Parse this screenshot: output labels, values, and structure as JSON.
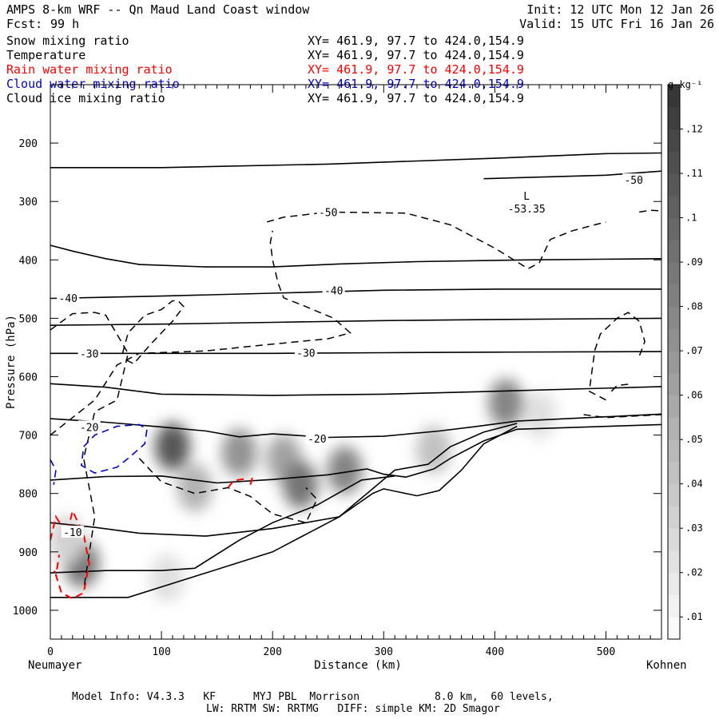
{
  "header": {
    "title": "AMPS 8-km WRF -- Qn Maud Land Coast window",
    "forecast_label": "Fcst:",
    "forecast_hours": "99 h",
    "init": "Init: 12 UTC Mon 12 Jan 26",
    "valid": "Valid: 15 UTC Fri 16 Jan 26"
  },
  "fields": [
    {
      "label": "Snow mixing ratio",
      "xy": "XY= 461.9, 97.7 to 424.0,154.9",
      "color": "#000000"
    },
    {
      "label": "Temperature",
      "xy": "XY= 461.9, 97.7 to 424.0,154.9",
      "color": "#000000"
    },
    {
      "label": "Rain water mixing ratio",
      "xy": "XY= 461.9, 97.7 to 424.0,154.9",
      "color": "#ff0000"
    },
    {
      "label": "Cloud water mixing ratio",
      "xy": "XY= 461.9, 97.7 to 424.0,154.9",
      "color": "#0000cc"
    },
    {
      "label": "Cloud ice mixing ratio",
      "xy": "XY= 461.9, 97.7 to 424.0,154.9",
      "color": "#000000"
    }
  ],
  "footer": {
    "line1": "Model Info: V4.3.3   KF      MYJ PBL  Morrison            8.0 km,  60 levels,",
    "line2": "LW: RRTM SW: RRTMG   DIFF: simple KM: 2D Smagor"
  },
  "chart_data": {
    "type": "cross-section",
    "title": "AMPS 8-km WRF -- Qn Maud Land Coast window",
    "xlabel": "Distance (km)",
    "ylabel": "Pressure (hPa)",
    "xlim": [
      0,
      550
    ],
    "ylim": [
      1050,
      100
    ],
    "x_ticks": [
      0,
      100,
      200,
      300,
      400,
      500
    ],
    "y_ticks": [
      200,
      300,
      400,
      500,
      600,
      700,
      800,
      900,
      1000
    ],
    "x_start_label": "Neumayer",
    "x_end_label": "Kohnen",
    "colorbar": {
      "unit": "g kg⁻¹",
      "ticks": [
        ".01",
        ".02",
        ".03",
        ".04",
        ".05",
        ".06",
        ".07",
        ".08",
        ".09",
        ".1",
        ".11",
        ".12"
      ],
      "min": 0.005,
      "max": 0.13
    },
    "annotation": {
      "label": "L",
      "value": "-53.35",
      "x": 420,
      "p": 300
    },
    "temperature_labels": [
      {
        "text": "-50",
        "x": 525,
        "p": 263
      },
      {
        "text": "-50",
        "x": 250,
        "p": 318
      },
      {
        "text": "-40",
        "x": 16,
        "p": 465
      },
      {
        "text": "-40",
        "x": 255,
        "p": 452
      },
      {
        "text": "-30",
        "x": 35,
        "p": 560
      },
      {
        "text": "-30",
        "x": 230,
        "p": 559
      },
      {
        "text": "-20",
        "x": 35,
        "p": 686
      },
      {
        "text": "-20",
        "x": 240,
        "p": 706
      },
      {
        "text": "-10",
        "x": 20,
        "p": 866
      }
    ],
    "temperature_isotherms": [
      [
        [
          0,
          242
        ],
        [
          100,
          242
        ],
        [
          250,
          236
        ],
        [
          400,
          226
        ],
        [
          500,
          218
        ],
        [
          550,
          217
        ]
      ],
      [
        [
          390,
          261
        ],
        [
          500,
          255
        ],
        [
          550,
          248
        ]
      ],
      [
        [
          0,
          375
        ],
        [
          20,
          385
        ],
        [
          50,
          398
        ],
        [
          80,
          408
        ],
        [
          140,
          412
        ],
        [
          200,
          412
        ],
        [
          260,
          407
        ],
        [
          330,
          403
        ],
        [
          430,
          400
        ],
        [
          550,
          398
        ]
      ],
      [
        [
          0,
          466
        ],
        [
          100,
          462
        ],
        [
          200,
          457
        ],
        [
          300,
          452
        ],
        [
          400,
          450
        ],
        [
          550,
          450
        ]
      ],
      [
        [
          0,
          512
        ],
        [
          100,
          510
        ],
        [
          200,
          507
        ],
        [
          300,
          504
        ],
        [
          400,
          502
        ],
        [
          550,
          500
        ]
      ],
      [
        [
          0,
          560
        ],
        [
          100,
          560
        ],
        [
          200,
          560
        ],
        [
          300,
          559
        ],
        [
          400,
          558
        ],
        [
          550,
          557
        ]
      ],
      [
        [
          0,
          612
        ],
        [
          50,
          618
        ],
        [
          100,
          630
        ],
        [
          200,
          632
        ],
        [
          300,
          630
        ],
        [
          400,
          625
        ],
        [
          550,
          617
        ]
      ],
      [
        [
          0,
          672
        ],
        [
          50,
          678
        ],
        [
          100,
          686
        ],
        [
          140,
          693
        ],
        [
          170,
          703
        ],
        [
          200,
          698
        ],
        [
          250,
          704
        ],
        [
          300,
          702
        ],
        [
          350,
          693
        ],
        [
          380,
          686
        ],
        [
          420,
          676
        ],
        [
          550,
          664
        ]
      ],
      [
        [
          0,
          777
        ],
        [
          50,
          771
        ],
        [
          100,
          770
        ],
        [
          150,
          782
        ],
        [
          200,
          776
        ],
        [
          250,
          768
        ],
        [
          285,
          758
        ],
        [
          300,
          767
        ],
        [
          320,
          772
        ],
        [
          345,
          758
        ],
        [
          360,
          740
        ],
        [
          390,
          710
        ],
        [
          420,
          690
        ],
        [
          550,
          682
        ]
      ],
      [
        [
          0,
          850
        ],
        [
          40,
          858
        ],
        [
          80,
          868
        ],
        [
          140,
          873
        ],
        [
          200,
          860
        ],
        [
          260,
          840
        ],
        [
          290,
          800
        ],
        [
          300,
          792
        ],
        [
          330,
          804
        ],
        [
          350,
          795
        ],
        [
          370,
          760
        ],
        [
          390,
          715
        ],
        [
          420,
          685
        ]
      ],
      [
        [
          0,
          936
        ],
        [
          50,
          932
        ],
        [
          100,
          932
        ],
        [
          130,
          928
        ],
        [
          170,
          880
        ],
        [
          200,
          850
        ],
        [
          240,
          820
        ],
        [
          280,
          777
        ],
        [
          310,
          770
        ]
      ],
      [
        [
          0,
          978
        ],
        [
          50,
          978
        ],
        [
          70,
          978
        ],
        [
          130,
          942
        ],
        [
          200,
          900
        ],
        [
          260,
          840
        ],
        [
          310,
          760
        ],
        [
          340,
          750
        ],
        [
          360,
          720
        ],
        [
          390,
          695
        ],
        [
          420,
          680
        ]
      ]
    ],
    "snow_mixing_ratio_contours": [
      [
        [
          195,
          335
        ],
        [
          210,
          327
        ],
        [
          250,
          318
        ],
        [
          320,
          320
        ],
        [
          360,
          340
        ],
        [
          400,
          380
        ],
        [
          430,
          415
        ],
        [
          440,
          405
        ],
        [
          450,
          365
        ],
        [
          470,
          350
        ],
        [
          490,
          340
        ],
        [
          500,
          335
        ]
      ],
      [
        [
          0,
          520
        ],
        [
          20,
          492
        ],
        [
          40,
          490
        ],
        [
          50,
          495
        ],
        [
          70,
          560
        ],
        [
          60,
          640
        ],
        [
          40,
          660
        ],
        [
          30,
          740
        ],
        [
          40,
          840
        ],
        [
          30,
          965
        ]
      ],
      [
        [
          0,
          700
        ],
        [
          20,
          670
        ],
        [
          40,
          640
        ],
        [
          60,
          580
        ],
        [
          80,
          560
        ],
        [
          140,
          556
        ],
        [
          180,
          548
        ],
        [
          250,
          535
        ],
        [
          270,
          525
        ],
        [
          255,
          500
        ],
        [
          230,
          480
        ],
        [
          210,
          465
        ],
        [
          205,
          440
        ],
        [
          200,
          400
        ],
        [
          198,
          370
        ],
        [
          200,
          350
        ]
      ],
      [
        [
          65,
          560
        ],
        [
          70,
          525
        ],
        [
          85,
          495
        ],
        [
          100,
          485
        ],
        [
          110,
          470
        ],
        [
          115,
          470
        ],
        [
          120,
          480
        ],
        [
          110,
          505
        ],
        [
          90,
          545
        ],
        [
          75,
          578
        ],
        [
          67,
          570
        ]
      ],
      [
        [
          80,
          740
        ],
        [
          100,
          780
        ],
        [
          130,
          800
        ],
        [
          160,
          790
        ],
        [
          180,
          805
        ],
        [
          200,
          835
        ],
        [
          230,
          850
        ],
        [
          240,
          810
        ],
        [
          230,
          790
        ]
      ],
      [
        [
          500,
          640
        ],
        [
          485,
          625
        ],
        [
          490,
          555
        ],
        [
          495,
          527
        ],
        [
          510,
          500
        ],
        [
          520,
          490
        ],
        [
          530,
          505
        ],
        [
          535,
          540
        ],
        [
          530,
          565
        ]
      ],
      [
        [
          480,
          665
        ],
        [
          500,
          670
        ],
        [
          530,
          667
        ],
        [
          550,
          665
        ]
      ],
      [
        [
          505,
          625
        ],
        [
          510,
          615
        ],
        [
          520,
          613
        ]
      ],
      [
        [
          530,
          318
        ],
        [
          540,
          315
        ],
        [
          550,
          316
        ]
      ]
    ],
    "cloud_water_contours": [
      [
        [
          0,
          742
        ],
        [
          5,
          760
        ],
        [
          3,
          785
        ]
      ],
      [
        [
          30,
          720
        ],
        [
          40,
          700
        ],
        [
          60,
          685
        ],
        [
          80,
          682
        ],
        [
          87,
          690
        ],
        [
          85,
          715
        ],
        [
          70,
          740
        ],
        [
          60,
          755
        ],
        [
          40,
          765
        ],
        [
          28,
          752
        ],
        [
          30,
          720
        ]
      ]
    ],
    "rain_water_contours": [
      [
        [
          0,
          880
        ],
        [
          5,
          840
        ],
        [
          15,
          870
        ],
        [
          20,
          830
        ],
        [
          30,
          870
        ],
        [
          35,
          920
        ],
        [
          30,
          970
        ],
        [
          20,
          980
        ],
        [
          10,
          970
        ],
        [
          5,
          940
        ],
        [
          8,
          905
        ]
      ],
      [
        [
          -5,
          920
        ],
        [
          0,
          930
        ],
        [
          5,
          935
        ]
      ],
      [
        [
          160,
          790
        ],
        [
          165,
          778
        ],
        [
          175,
          775
        ]
      ],
      [
        [
          180,
          785
        ],
        [
          182,
          772
        ],
        [
          185,
          770
        ]
      ]
    ],
    "shading_blobs": [
      {
        "x": 110,
        "p": 720,
        "q": 0.11
      },
      {
        "x": 170,
        "p": 730,
        "q": 0.07
      },
      {
        "x": 210,
        "p": 740,
        "q": 0.06
      },
      {
        "x": 225,
        "p": 785,
        "q": 0.09
      },
      {
        "x": 265,
        "p": 760,
        "q": 0.08
      },
      {
        "x": 345,
        "p": 725,
        "q": 0.04
      },
      {
        "x": 410,
        "p": 645,
        "q": 0.08
      },
      {
        "x": 440,
        "p": 665,
        "q": 0.02
      },
      {
        "x": 28,
        "p": 920,
        "q": 0.09
      },
      {
        "x": 15,
        "p": 880,
        "q": 0.03
      },
      {
        "x": 105,
        "p": 945,
        "q": 0.02
      },
      {
        "x": 130,
        "p": 790,
        "q": 0.05
      }
    ]
  }
}
